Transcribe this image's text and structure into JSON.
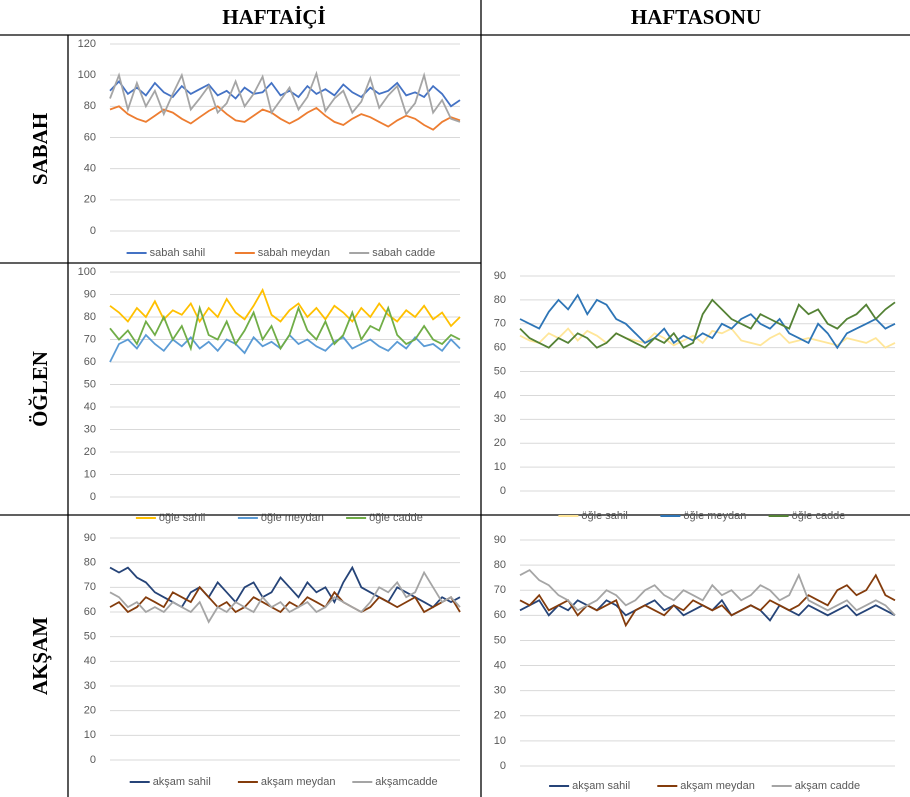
{
  "table": {
    "columns": [
      "HAFTAİÇİ",
      "HAFTASONU"
    ],
    "rows": [
      "SABAH",
      "ÖĞLEN",
      "AKŞAM"
    ]
  },
  "chart_data": [
    {
      "type": "line",
      "ylim": [
        0,
        120
      ],
      "yticks": [
        0,
        20,
        40,
        60,
        80,
        100,
        120
      ],
      "grid": true,
      "legend": "bottom",
      "series": [
        {
          "name": "sabah sahil",
          "color": "#4472c4",
          "values": [
            90,
            96,
            88,
            92,
            87,
            95,
            89,
            86,
            93,
            88,
            91,
            94,
            87,
            90,
            85,
            92,
            88,
            89,
            95,
            87,
            90,
            86,
            93,
            88,
            91,
            87,
            94,
            89,
            86,
            92,
            88,
            90,
            95,
            87,
            89,
            86,
            93,
            88,
            80,
            84
          ]
        },
        {
          "name": "sabah meydan",
          "color": "#ed7d31",
          "values": [
            78,
            80,
            75,
            72,
            70,
            74,
            78,
            76,
            72,
            69,
            73,
            77,
            80,
            75,
            71,
            70,
            74,
            78,
            76,
            72,
            69,
            72,
            76,
            79,
            74,
            70,
            68,
            72,
            75,
            73,
            70,
            67,
            71,
            74,
            72,
            68,
            65,
            70,
            73,
            71
          ]
        },
        {
          "name": "sabah cadde",
          "color": "#a5a5a5",
          "values": [
            85,
            100,
            78,
            95,
            80,
            90,
            75,
            88,
            100,
            78,
            85,
            93,
            76,
            82,
            96,
            80,
            88,
            99,
            76,
            84,
            92,
            78,
            86,
            101,
            77,
            85,
            90,
            76,
            83,
            98,
            79,
            87,
            93,
            75,
            82,
            100,
            76,
            84,
            72,
            70
          ]
        }
      ]
    },
    {
      "type": "line",
      "ylim": [
        0,
        100
      ],
      "yticks": [
        0,
        10,
        20,
        30,
        40,
        50,
        60,
        70,
        80,
        90,
        100
      ],
      "grid": true,
      "legend": "bottom",
      "series": [
        {
          "name": "öğle sahil",
          "color": "#ffc000",
          "values": [
            85,
            82,
            78,
            84,
            80,
            87,
            79,
            83,
            81,
            86,
            78,
            84,
            80,
            88,
            82,
            79,
            85,
            92,
            81,
            78,
            83,
            86,
            80,
            84,
            79,
            85,
            82,
            78,
            84,
            80,
            86,
            81,
            78,
            83,
            80,
            85,
            79,
            82,
            76,
            80
          ]
        },
        {
          "name": "öğle meydan",
          "color": "#5b9bd5",
          "values": [
            60,
            68,
            70,
            66,
            72,
            68,
            65,
            70,
            67,
            71,
            66,
            69,
            65,
            70,
            68,
            64,
            71,
            67,
            69,
            66,
            72,
            68,
            70,
            67,
            65,
            69,
            71,
            66,
            68,
            70,
            67,
            65,
            69,
            66,
            71,
            67,
            68,
            65,
            70,
            66
          ]
        },
        {
          "name": "öğle cadde",
          "color": "#70ad47",
          "values": [
            75,
            70,
            74,
            68,
            78,
            72,
            80,
            70,
            76,
            66,
            84,
            72,
            70,
            78,
            68,
            74,
            82,
            70,
            76,
            66,
            72,
            84,
            74,
            70,
            78,
            68,
            72,
            82,
            70,
            76,
            74,
            84,
            72,
            68,
            70,
            76,
            70,
            68,
            72,
            70
          ]
        }
      ]
    },
    {
      "type": "line",
      "ylim": [
        0,
        90
      ],
      "yticks": [
        0,
        10,
        20,
        30,
        40,
        50,
        60,
        70,
        80,
        90
      ],
      "grid": true,
      "legend": "bottom",
      "series": [
        {
          "name": "öğle sahil",
          "color": "#ffe699",
          "values": [
            65,
            63,
            62,
            66,
            64,
            68,
            63,
            67,
            65,
            62,
            66,
            64,
            63,
            62,
            66,
            64,
            61,
            63,
            65,
            62,
            67,
            66,
            68,
            63,
            62,
            61,
            64,
            66,
            62,
            63,
            64,
            63,
            62,
            61,
            64,
            63,
            62,
            64,
            60,
            62
          ]
        },
        {
          "name": "öğle meydan",
          "color": "#2e75b6",
          "values": [
            72,
            70,
            68,
            75,
            80,
            76,
            82,
            74,
            80,
            78,
            72,
            70,
            66,
            62,
            64,
            68,
            62,
            65,
            63,
            66,
            64,
            70,
            68,
            72,
            74,
            70,
            68,
            72,
            66,
            64,
            62,
            70,
            66,
            60,
            66,
            68,
            70,
            72,
            68,
            70
          ]
        },
        {
          "name": "öğle cadde",
          "color": "#548235",
          "values": [
            68,
            64,
            62,
            60,
            64,
            62,
            66,
            64,
            60,
            62,
            66,
            64,
            62,
            60,
            64,
            62,
            66,
            60,
            62,
            74,
            80,
            76,
            72,
            70,
            68,
            74,
            72,
            70,
            68,
            78,
            74,
            76,
            70,
            68,
            72,
            74,
            78,
            72,
            76,
            79
          ]
        }
      ]
    },
    {
      "type": "line",
      "ylim": [
        0,
        90
      ],
      "yticks": [
        0,
        10,
        20,
        30,
        40,
        50,
        60,
        70,
        80,
        90
      ],
      "grid": true,
      "legend": "bottom",
      "series": [
        {
          "name": "akşam sahil",
          "color": "#264478",
          "values": [
            78,
            76,
            78,
            74,
            72,
            68,
            66,
            64,
            62,
            68,
            70,
            66,
            72,
            68,
            64,
            70,
            72,
            66,
            68,
            74,
            70,
            66,
            72,
            68,
            70,
            64,
            72,
            78,
            70,
            68,
            66,
            64,
            70,
            68,
            66,
            64,
            62,
            66,
            64,
            66
          ]
        },
        {
          "name": "akşam meydan",
          "color": "#843c0c",
          "values": [
            62,
            64,
            60,
            62,
            66,
            64,
            62,
            68,
            66,
            64,
            70,
            66,
            62,
            64,
            60,
            62,
            66,
            64,
            62,
            60,
            64,
            62,
            66,
            64,
            62,
            68,
            64,
            62,
            60,
            62,
            66,
            64,
            62,
            64,
            66,
            60,
            62,
            64,
            66,
            60
          ]
        },
        {
          "name": "akşamcadde",
          "color": "#a5a5a5",
          "values": [
            68,
            66,
            62,
            64,
            60,
            62,
            60,
            64,
            62,
            60,
            64,
            56,
            62,
            60,
            64,
            62,
            60,
            66,
            62,
            64,
            60,
            62,
            64,
            60,
            62,
            66,
            64,
            62,
            60,
            64,
            70,
            68,
            72,
            66,
            68,
            76,
            70,
            64,
            66,
            62
          ]
        }
      ]
    },
    {
      "type": "line",
      "ylim": [
        0,
        90
      ],
      "yticks": [
        0,
        10,
        20,
        30,
        40,
        50,
        60,
        70,
        80,
        90
      ],
      "grid": true,
      "legend": "bottom",
      "series": [
        {
          "name": "akşam sahil",
          "color": "#264478",
          "values": [
            62,
            64,
            66,
            60,
            64,
            62,
            66,
            64,
            62,
            66,
            64,
            60,
            62,
            64,
            66,
            62,
            64,
            60,
            62,
            64,
            62,
            66,
            60,
            62,
            64,
            62,
            58,
            64,
            62,
            60,
            64,
            62,
            60,
            62,
            64,
            60,
            62,
            64,
            62,
            60
          ]
        },
        {
          "name": "akşam meydan",
          "color": "#843c0c",
          "values": [
            66,
            64,
            68,
            62,
            64,
            66,
            60,
            64,
            62,
            64,
            66,
            56,
            62,
            64,
            62,
            60,
            64,
            62,
            66,
            64,
            62,
            64,
            60,
            62,
            64,
            62,
            66,
            64,
            62,
            64,
            68,
            66,
            64,
            70,
            72,
            68,
            70,
            76,
            68,
            66
          ]
        },
        {
          "name": "akşam cadde",
          "color": "#a5a5a5",
          "values": [
            76,
            78,
            74,
            72,
            68,
            66,
            62,
            64,
            66,
            70,
            68,
            64,
            66,
            70,
            72,
            68,
            66,
            70,
            68,
            66,
            72,
            68,
            70,
            66,
            68,
            72,
            70,
            66,
            68,
            76,
            66,
            64,
            62,
            64,
            66,
            62,
            64,
            66,
            64,
            60
          ]
        }
      ]
    }
  ]
}
